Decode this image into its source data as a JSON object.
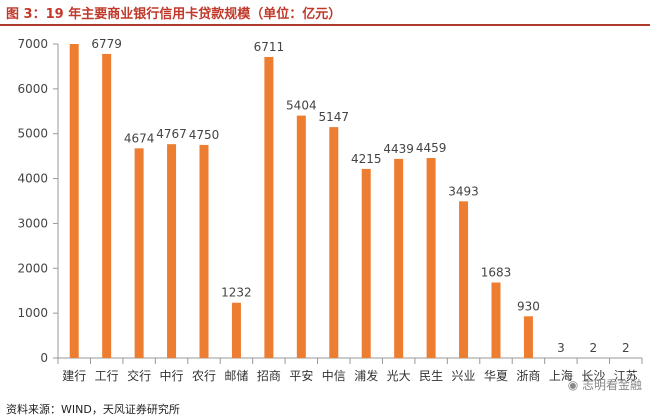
{
  "header": {
    "title": "图 3：19 年主要商业银行信用卡贷款规模（单位：亿元）"
  },
  "footer": {
    "source": "资料来源：WIND，天风证券研究所"
  },
  "watermark": {
    "text": "志明看金融"
  },
  "colors": {
    "bar": "#ED7D31",
    "title": "#C0392B",
    "axis": "#999999"
  },
  "chart_data": {
    "type": "bar",
    "title": "",
    "xlabel": "",
    "ylabel": "",
    "ylim": [
      0,
      7000
    ],
    "yticks": [
      0,
      1000,
      2000,
      3000,
      4000,
      5000,
      6000,
      7000
    ],
    "grid": false,
    "categories": [
      "建行",
      "工行",
      "交行",
      "中行",
      "农行",
      "邮储",
      "招商",
      "平安",
      "中信",
      "浦发",
      "光大",
      "民生",
      "兴业",
      "华夏",
      "浙商",
      "上海",
      "长沙",
      "江苏"
    ],
    "values": [
      null,
      6779,
      4674,
      4767,
      4750,
      1232,
      6711,
      5404,
      5147,
      4215,
      4439,
      4459,
      3493,
      1683,
      930,
      3,
      2,
      2
    ],
    "bar_values": [
      7000,
      6779,
      4674,
      4767,
      4750,
      1232,
      6711,
      5404,
      5147,
      4215,
      4439,
      4459,
      3493,
      1683,
      930,
      3,
      2,
      2
    ]
  }
}
